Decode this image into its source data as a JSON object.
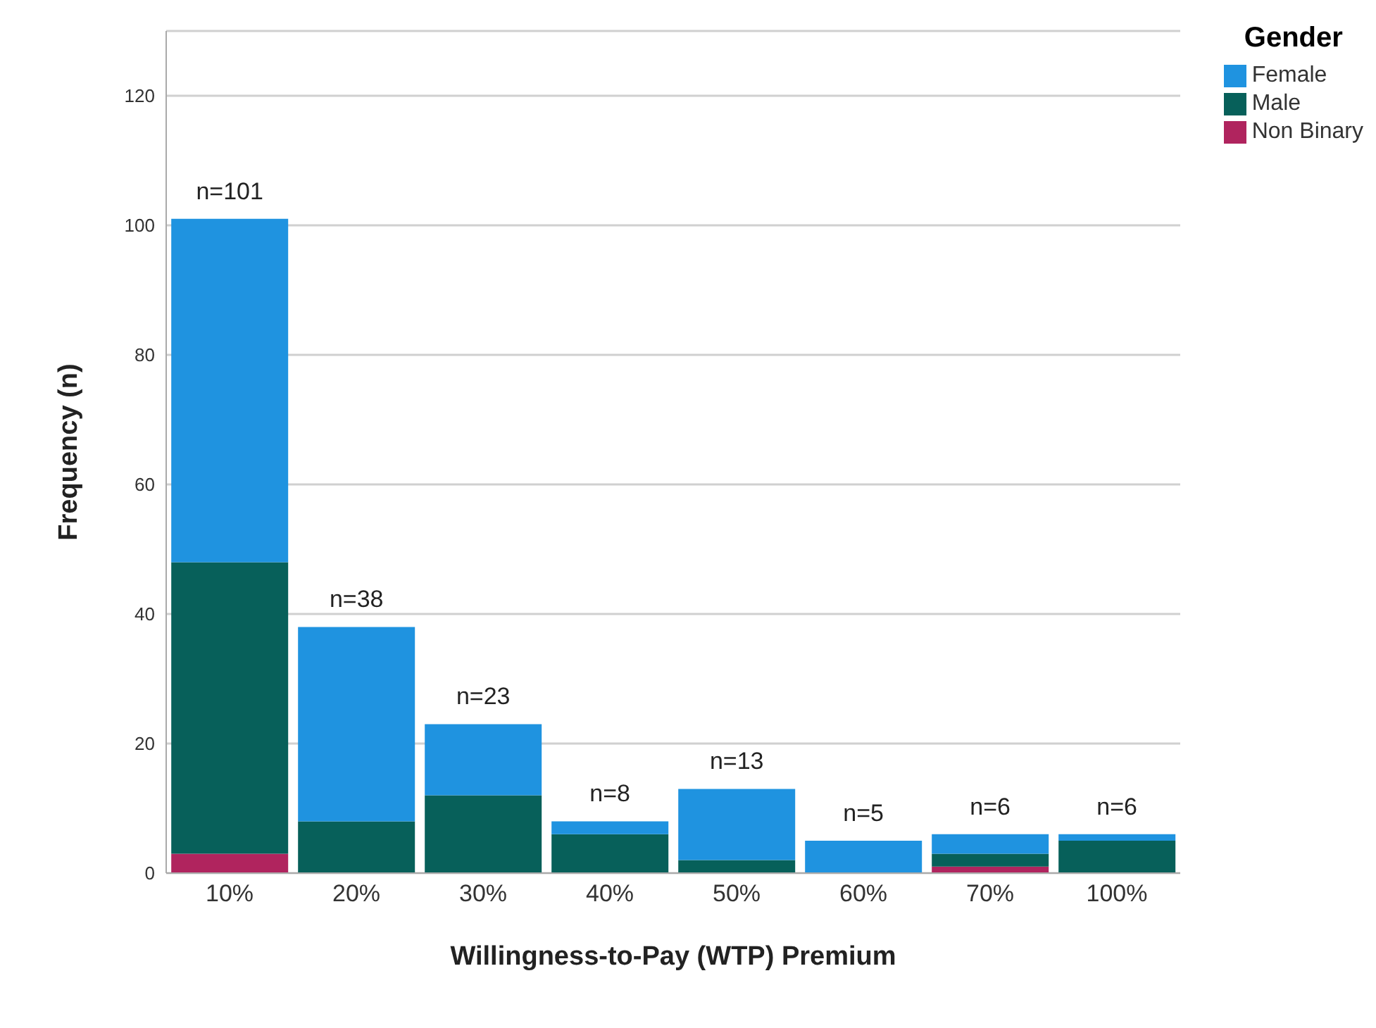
{
  "chart_data": {
    "type": "bar",
    "stacked": true,
    "xlabel": "Willingness-to-Pay (WTP) Premium",
    "ylabel": "Frequency (n)",
    "legend_title": "Gender",
    "legend": "top right",
    "grid": "y",
    "categories": [
      "10%",
      "20%",
      "30%",
      "40%",
      "50%",
      "60%",
      "70%",
      "100%"
    ],
    "series": [
      {
        "name": "Non Binary",
        "color": "#b0245e",
        "values": [
          3,
          0,
          0,
          0,
          0,
          0,
          1,
          0
        ]
      },
      {
        "name": "Male",
        "color": "#07605a",
        "values": [
          45,
          8,
          12,
          6,
          2,
          0,
          2,
          5
        ]
      },
      {
        "name": "Female",
        "color": "#1f93e0",
        "values": [
          53,
          30,
          11,
          2,
          11,
          5,
          3,
          1
        ]
      }
    ],
    "totals": [
      "n=101",
      "n=38",
      "n=23",
      "n=8",
      "n=13",
      "n=5",
      "n=6",
      "n=6"
    ],
    "ylim": [
      0,
      130
    ],
    "yticks": [
      0,
      20,
      40,
      60,
      80,
      100,
      120
    ]
  }
}
